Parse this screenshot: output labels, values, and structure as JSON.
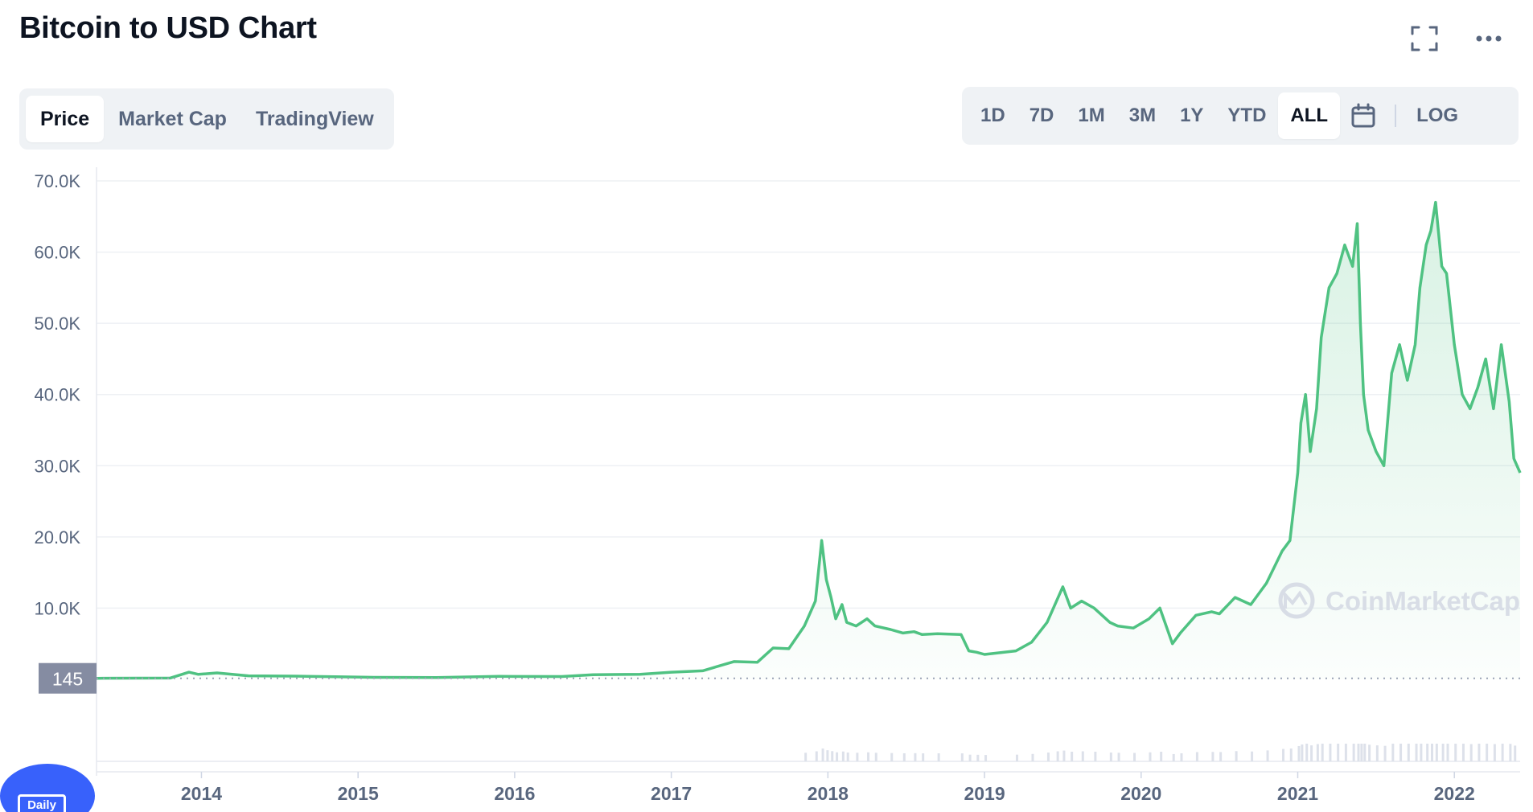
{
  "header": {
    "title": "Bitcoin to USD Chart",
    "fullscreen_icon": "fullscreen-icon",
    "more_icon": "more-dots-icon"
  },
  "view_tabs": [
    {
      "label": "Price",
      "active": true
    },
    {
      "label": "Market Cap",
      "active": false
    },
    {
      "label": "TradingView",
      "active": false
    }
  ],
  "range_tabs": [
    {
      "label": "1D",
      "active": false
    },
    {
      "label": "7D",
      "active": false
    },
    {
      "label": "1M",
      "active": false
    },
    {
      "label": "3M",
      "active": false
    },
    {
      "label": "1Y",
      "active": false
    },
    {
      "label": "YTD",
      "active": false
    },
    {
      "label": "ALL",
      "active": true
    }
  ],
  "calendar_icon": "calendar-icon",
  "log_label": "LOG",
  "watermark": "CoinMarketCap",
  "badge_label": "Daily",
  "colors": {
    "line": "#4fc282",
    "fill": "#e9f8ef",
    "grid": "#eef0f4",
    "axis_text": "#58667e",
    "accent": "#3861fb",
    "price_marker": "#858ca2"
  },
  "chart_data": {
    "type": "area",
    "title": "Bitcoin to USD Chart",
    "xlabel": "",
    "ylabel": "",
    "ylim": [
      0,
      70000
    ],
    "xlim": [
      2013.33,
      2022.42
    ],
    "y_ticks": [
      10000,
      20000,
      30000,
      40000,
      50000,
      60000,
      70000
    ],
    "y_tick_labels": [
      "10.0K",
      "20.0K",
      "30.0K",
      "40.0K",
      "50.0K",
      "60.0K",
      "70.0K"
    ],
    "x_ticks": [
      2014,
      2015,
      2016,
      2017,
      2018,
      2019,
      2020,
      2021,
      2022
    ],
    "x_tick_labels": [
      "2014",
      "2015",
      "2016",
      "2017",
      "2018",
      "2019",
      "2020",
      "2021",
      "2022"
    ],
    "grid": true,
    "first_price_marker": {
      "value": 145,
      "label": "145"
    },
    "series": [
      {
        "x": [
          2013.33,
          2013.8,
          2013.92,
          2013.98,
          2014.1,
          2014.3,
          2014.6,
          2014.9,
          2015.1,
          2015.5,
          2015.9,
          2016.3,
          2016.5,
          2016.8,
          2017.0,
          2017.2,
          2017.4,
          2017.55,
          2017.65,
          2017.75,
          2017.85,
          2017.92,
          2017.96,
          2017.99,
          2018.02,
          2018.05,
          2018.09,
          2018.12,
          2018.18,
          2018.25,
          2018.3,
          2018.4,
          2018.48,
          2018.55,
          2018.6,
          2018.7,
          2018.85,
          2018.9,
          2018.95,
          2019.0,
          2019.2,
          2019.3,
          2019.4,
          2019.46,
          2019.5,
          2019.55,
          2019.62,
          2019.7,
          2019.8,
          2019.85,
          2019.95,
          2020.05,
          2020.12,
          2020.2,
          2020.25,
          2020.35,
          2020.45,
          2020.5,
          2020.6,
          2020.7,
          2020.8,
          2020.9,
          2020.95,
          2021.0,
          2021.02,
          2021.05,
          2021.08,
          2021.12,
          2021.15,
          2021.2,
          2021.25,
          2021.3,
          2021.35,
          2021.38,
          2021.4,
          2021.42,
          2021.45,
          2021.5,
          2021.55,
          2021.6,
          2021.65,
          2021.7,
          2021.75,
          2021.78,
          2021.82,
          2021.85,
          2021.88,
          2021.92,
          2021.95,
          2022.0,
          2022.05,
          2022.1,
          2022.15,
          2022.2,
          2022.25,
          2022.3,
          2022.35,
          2022.38,
          2022.42
        ],
        "y": [
          145,
          180,
          1000,
          700,
          900,
          500,
          450,
          350,
          280,
          250,
          420,
          400,
          650,
          700,
          1000,
          1200,
          2500,
          2400,
          4400,
          4300,
          7500,
          11000,
          19500,
          14000,
          11500,
          8500,
          10500,
          8000,
          7500,
          8500,
          7500,
          7000,
          6500,
          6700,
          6300,
          6400,
          6300,
          4000,
          3800,
          3500,
          4000,
          5200,
          8000,
          11000,
          13000,
          10000,
          11000,
          10000,
          8000,
          7500,
          7200,
          8500,
          10000,
          5000,
          6500,
          9000,
          9500,
          9200,
          11500,
          10500,
          13500,
          18000,
          19500,
          29000,
          36000,
          40000,
          32000,
          38000,
          48000,
          55000,
          57000,
          61000,
          58000,
          64000,
          50000,
          40000,
          35000,
          32000,
          30000,
          43000,
          47000,
          42000,
          47000,
          55000,
          61000,
          63000,
          67000,
          58000,
          57000,
          47000,
          40000,
          38000,
          41000,
          45000,
          38000,
          47000,
          39000,
          31000,
          29000
        ]
      }
    ]
  }
}
